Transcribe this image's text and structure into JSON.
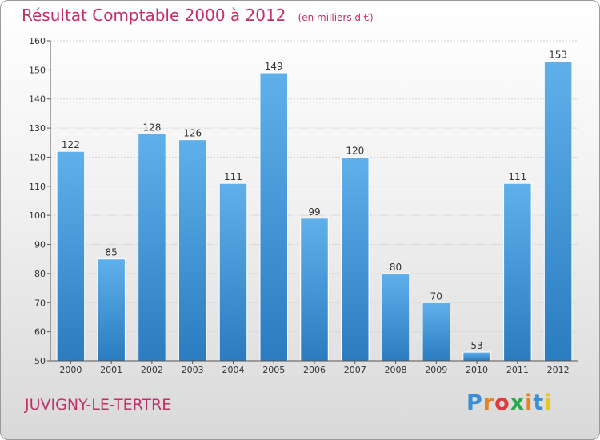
{
  "chart_data": {
    "type": "bar",
    "title": "Résultat Comptable 2000 à 2012",
    "unit_label": "(en milliers d'€)",
    "categories": [
      "2000",
      "2001",
      "2002",
      "2003",
      "2004",
      "2005",
      "2006",
      "2007",
      "2008",
      "2009",
      "2010",
      "2011",
      "2012"
    ],
    "values": [
      122,
      85,
      128,
      126,
      111,
      149,
      99,
      120,
      80,
      70,
      53,
      111,
      153
    ],
    "ylim": [
      50,
      160
    ],
    "yticks": [
      50,
      60,
      70,
      80,
      90,
      100,
      110,
      120,
      130,
      140,
      150,
      160
    ],
    "xlabel": "",
    "ylabel": "",
    "grid": true
  },
  "location": "JUVIGNY-LE-TERTRE",
  "brand": {
    "letters": [
      "P",
      "r",
      "o",
      "x",
      "i",
      "t",
      "i"
    ],
    "colors": [
      "#3a8fd6",
      "#e8821e",
      "#e03a3a",
      "#2aa84a",
      "#e8821e",
      "#3a8fd6",
      "#e8c61e"
    ]
  },
  "colors": {
    "title": "#c2306a",
    "bar_light": "#5fb0ea",
    "bar_dark": "#2b7cc0"
  }
}
